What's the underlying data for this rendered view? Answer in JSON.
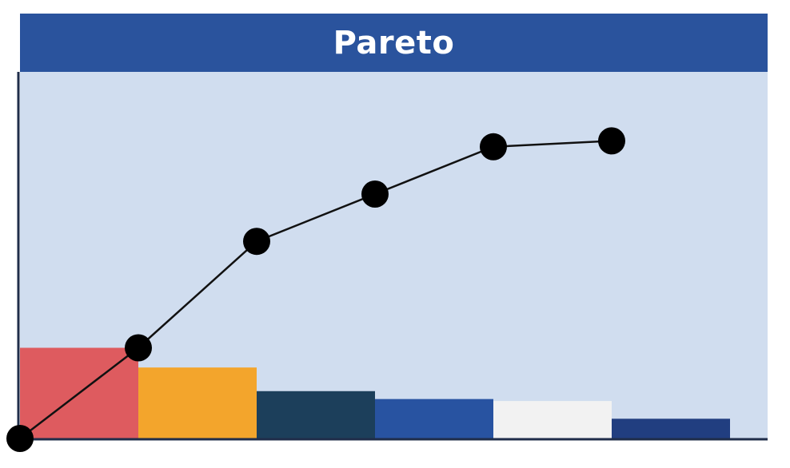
{
  "chart_data": {
    "type": "bar",
    "title": "Pareto",
    "categories": [
      "",
      "",
      "",
      "",
      "",
      ""
    ],
    "values": [
      23,
      18,
      12,
      10,
      9.5,
      5
    ],
    "cumulative": [
      0,
      23,
      50,
      62,
      74,
      75.5
    ],
    "ylim": [
      0,
      93
    ],
    "colors": {
      "bars": [
        "#de5b5f",
        "#f3a52c",
        "#1c3f5b",
        "#2853a1",
        "#f2f2f2",
        "#213e80"
      ],
      "title_bg": "#2a539d",
      "plot_bg": "#d0ddef",
      "axis": "#1f2d4a",
      "line": "#111111",
      "marker": "#000000"
    },
    "grid": false,
    "legend": "none"
  }
}
